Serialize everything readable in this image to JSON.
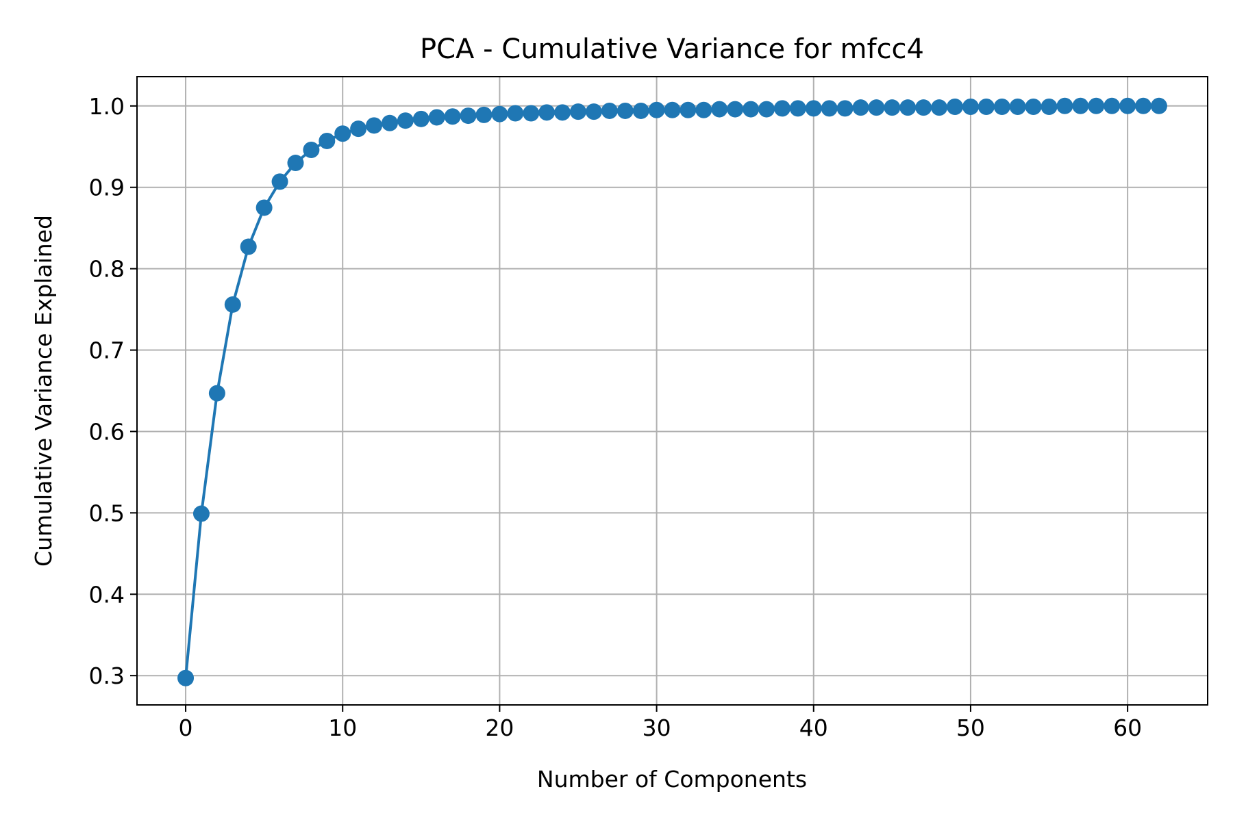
{
  "chart_data": {
    "type": "line",
    "title": "PCA - Cumulative Variance for mfcc4",
    "xlabel": "Number of Components",
    "ylabel": "Cumulative Variance Explained",
    "xlim": [
      -3.1,
      65.1
    ],
    "ylim": [
      0.264,
      1.036
    ],
    "xticks": [
      0,
      10,
      20,
      30,
      40,
      50,
      60
    ],
    "xtick_labels": [
      "0",
      "10",
      "20",
      "30",
      "40",
      "50",
      "60"
    ],
    "yticks": [
      0.3,
      0.4,
      0.5,
      0.6,
      0.7,
      0.8,
      0.9,
      1.0
    ],
    "ytick_labels": [
      "0.3",
      "0.4",
      "0.5",
      "0.6",
      "0.7",
      "0.8",
      "0.9",
      "1.0"
    ],
    "grid": true,
    "legend": "none",
    "markers": true,
    "colors": {
      "series": "#1f77b4",
      "grid": "#b0b0b0",
      "axes": "#000000"
    },
    "x": [
      0,
      1,
      2,
      3,
      4,
      5,
      6,
      7,
      8,
      9,
      10,
      11,
      12,
      13,
      14,
      15,
      16,
      17,
      18,
      19,
      20,
      21,
      22,
      23,
      24,
      25,
      26,
      27,
      28,
      29,
      30,
      31,
      32,
      33,
      34,
      35,
      36,
      37,
      38,
      39,
      40,
      41,
      42,
      43,
      44,
      45,
      46,
      47,
      48,
      49,
      50,
      51,
      52,
      53,
      54,
      55,
      56,
      57,
      58,
      59,
      60,
      61,
      62
    ],
    "series": [
      {
        "values": [
          0.297,
          0.499,
          0.647,
          0.756,
          0.827,
          0.875,
          0.907,
          0.93,
          0.946,
          0.957,
          0.966,
          0.972,
          0.976,
          0.979,
          0.982,
          0.984,
          0.986,
          0.987,
          0.988,
          0.989,
          0.99,
          0.991,
          0.991,
          0.992,
          0.992,
          0.993,
          0.993,
          0.994,
          0.994,
          0.994,
          0.995,
          0.995,
          0.995,
          0.995,
          0.996,
          0.996,
          0.996,
          0.996,
          0.997,
          0.997,
          0.997,
          0.997,
          0.997,
          0.998,
          0.998,
          0.998,
          0.998,
          0.998,
          0.998,
          0.999,
          0.999,
          0.999,
          0.999,
          0.999,
          0.999,
          0.999,
          1.0,
          1.0,
          1.0,
          1.0,
          1.0,
          1.0,
          1.0
        ]
      }
    ]
  }
}
